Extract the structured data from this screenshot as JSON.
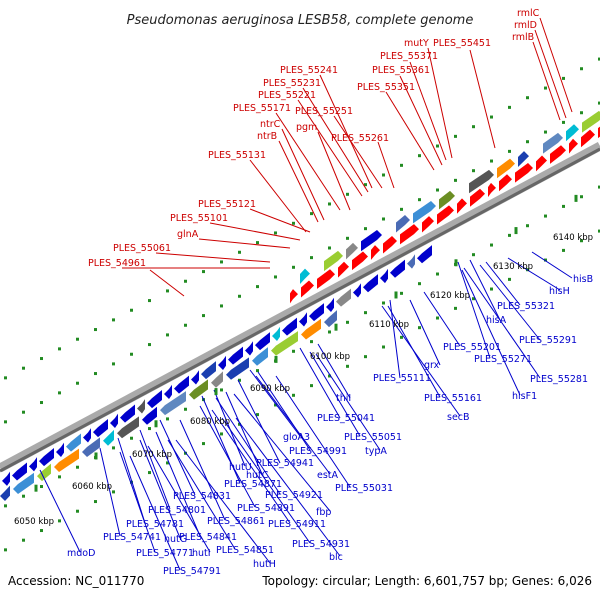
{
  "title": "Pseudomonas aeruginosa LESB58, complete genome",
  "footer": {
    "accession": "Accession: NC_011770",
    "summary": "Topology: circular; Length: 6,601,757 bp; Genes: 6,026"
  },
  "colors": {
    "forward": "#ff0000",
    "reverse": "#0000ff",
    "red_label": "#cc0000",
    "blue_label": "#0000cc"
  },
  "kbp_ticks": [
    "6050 kbp",
    "6060 kbp",
    "6070 kbp",
    "6080 kbp",
    "6090 kbp",
    "6100 kbp",
    "6110 kbp",
    "6120 kbp",
    "6130 kbp",
    "6140 kbp"
  ],
  "labels_top": [
    "rmlC",
    "rmlD",
    "rmlB",
    "mutY",
    "PLES_55451",
    "PLES_55371",
    "PLES_55361",
    "PLES_55351",
    "PLES_55241",
    "PLES_55231",
    "PLES_55221",
    "PLES_55171",
    "PLES_55251",
    "ntrC",
    "pgm",
    "ntrB",
    "PLES_55261",
    "PLES_55131",
    "PLES_55121",
    "PLES_55101",
    "glnA",
    "PLES_55061",
    "PLES_54961"
  ],
  "labels_bottom": [
    "hisB",
    "hisH",
    "PLES_55321",
    "hisA",
    "PLES_55291",
    "PLES_55201",
    "PLES_55271",
    "PLES_55281",
    "hisF1",
    "grx",
    "PLES_55111",
    "PLES_55161",
    "secB",
    "thiI",
    "PLES_55041",
    "PLES_55051",
    "typA",
    "gloA3",
    "PLES_54991",
    "PLES_54941",
    "estA",
    "hutU",
    "PLES_55031",
    "hutC",
    "PLES_54871",
    "PLES_54921",
    "fbp",
    "PLES_54831",
    "PLES_54891",
    "PLES_54801",
    "PLES_54911",
    "PLES_54861",
    "PLES_54781",
    "PLES_54841",
    "PLES_54931",
    "hutG",
    "PLES_54741",
    "blc",
    "hutI",
    "PLES_54851",
    "PLES_54771",
    "hutH",
    "PLES_54791",
    "mdoD"
  ]
}
